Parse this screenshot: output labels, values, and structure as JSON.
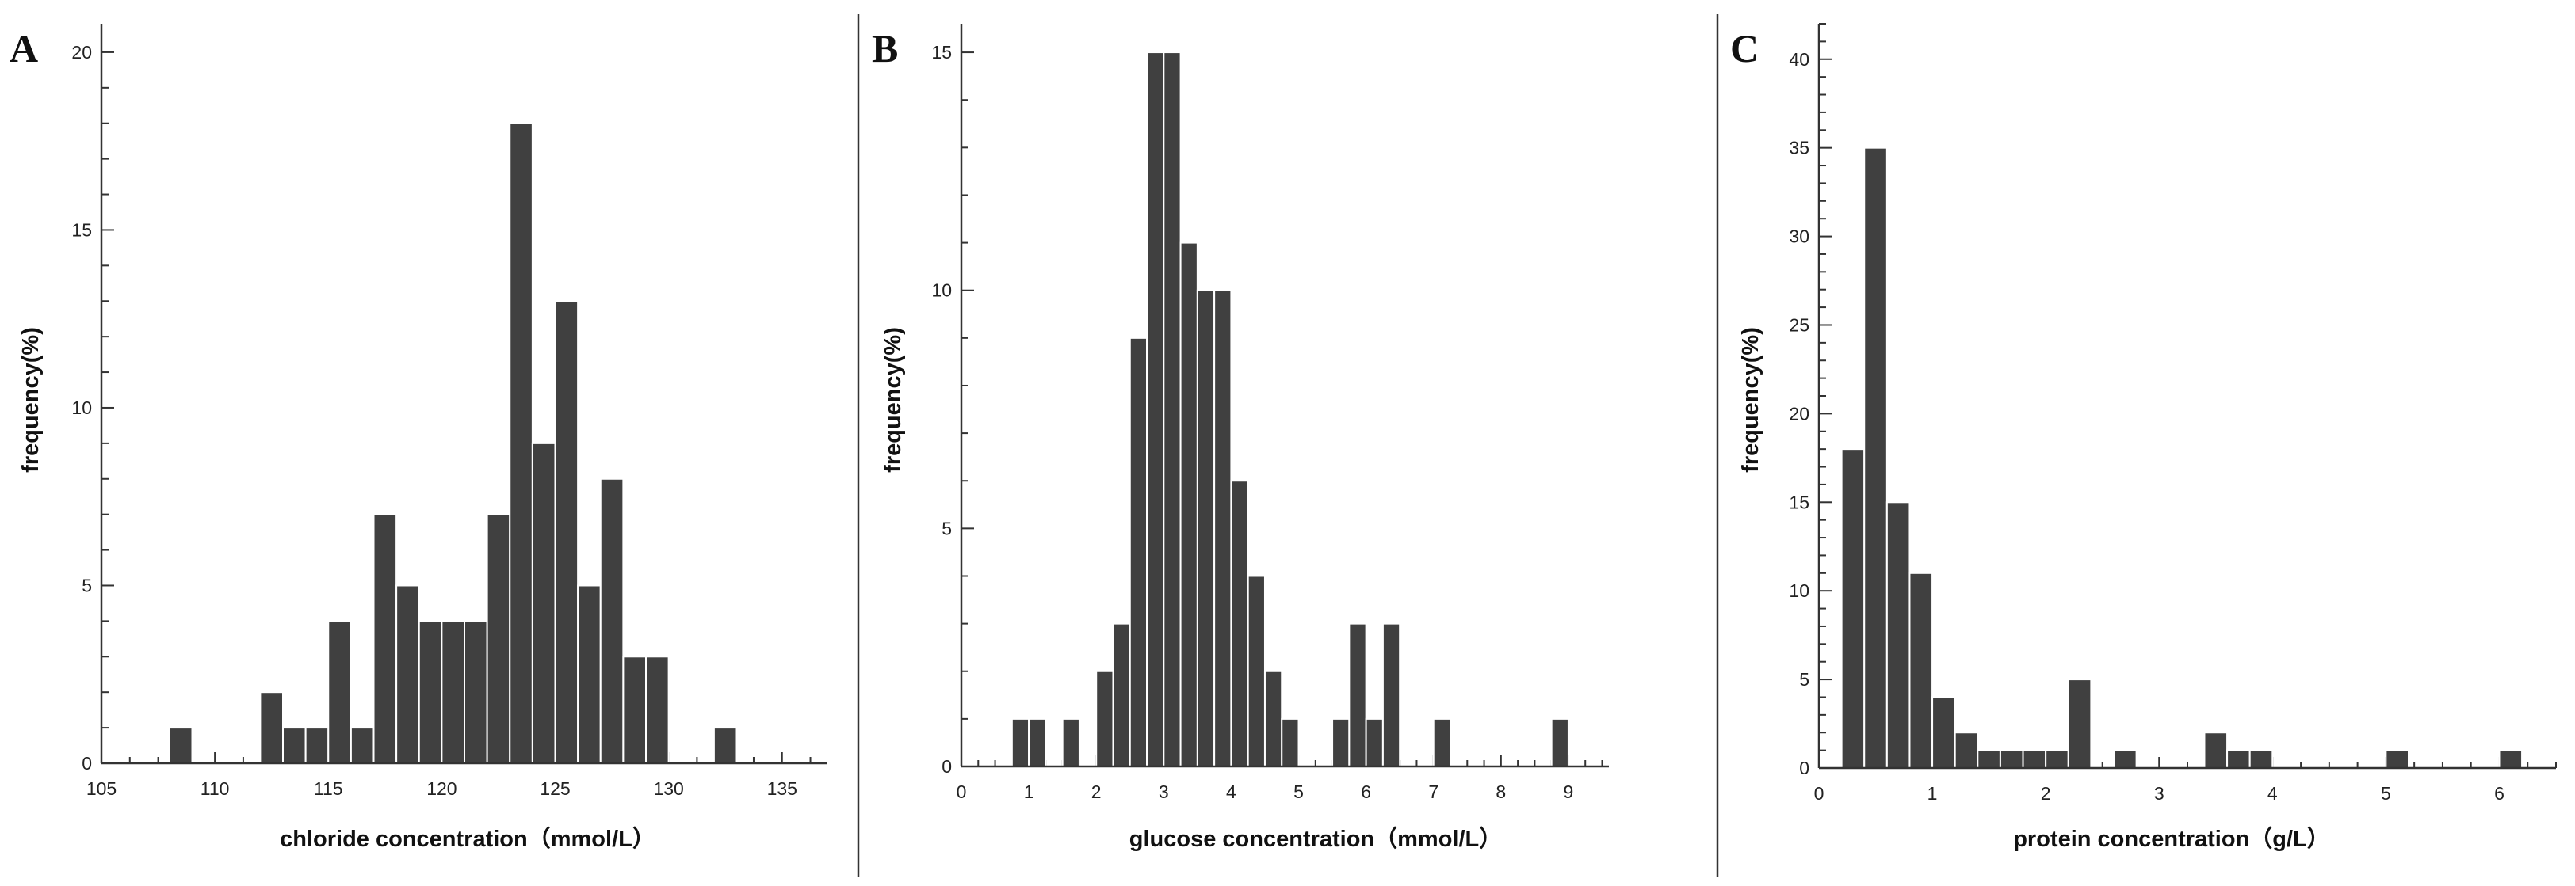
{
  "chart_data": [
    {
      "type": "bar",
      "panel": "A",
      "xlabel": "chloride concentration（mmol/L）",
      "ylabel": "frequency(%)",
      "xlim": [
        105,
        137
      ],
      "ylim": [
        0,
        20.8
      ],
      "xticks": [
        105,
        110,
        115,
        120,
        125,
        130,
        135
      ],
      "yticks": [
        0,
        5,
        10,
        15,
        20
      ],
      "bin_width": 1,
      "bins": [
        {
          "x": 108.5,
          "y": 1
        },
        {
          "x": 112.5,
          "y": 2
        },
        {
          "x": 113.5,
          "y": 1
        },
        {
          "x": 114.5,
          "y": 1
        },
        {
          "x": 115.5,
          "y": 4
        },
        {
          "x": 116.5,
          "y": 1
        },
        {
          "x": 117.5,
          "y": 7
        },
        {
          "x": 118.5,
          "y": 5
        },
        {
          "x": 119.5,
          "y": 4
        },
        {
          "x": 120.5,
          "y": 4
        },
        {
          "x": 121.5,
          "y": 4
        },
        {
          "x": 122.5,
          "y": 7
        },
        {
          "x": 123.5,
          "y": 18
        },
        {
          "x": 124.5,
          "y": 9
        },
        {
          "x": 125.5,
          "y": 13
        },
        {
          "x": 126.5,
          "y": 5
        },
        {
          "x": 127.5,
          "y": 8
        },
        {
          "x": 128.5,
          "y": 3
        },
        {
          "x": 129.5,
          "y": 3
        },
        {
          "x": 132.5,
          "y": 1
        }
      ]
    },
    {
      "type": "bar",
      "panel": "B",
      "xlabel": "glucose concentration（mmol/L）",
      "ylabel": "frequency(%)",
      "xlim": [
        0,
        9.6
      ],
      "ylim": [
        0,
        15.6
      ],
      "xticks": [
        0,
        1,
        2,
        3,
        4,
        5,
        6,
        7,
        8,
        9
      ],
      "yticks": [
        0,
        5,
        10,
        15
      ],
      "bin_width": 0.25,
      "bins": [
        {
          "x": 0.875,
          "y": 1
        },
        {
          "x": 1.125,
          "y": 1
        },
        {
          "x": 1.625,
          "y": 1
        },
        {
          "x": 2.125,
          "y": 2
        },
        {
          "x": 2.375,
          "y": 3
        },
        {
          "x": 2.625,
          "y": 9
        },
        {
          "x": 2.875,
          "y": 15
        },
        {
          "x": 3.125,
          "y": 15
        },
        {
          "x": 3.375,
          "y": 11
        },
        {
          "x": 3.625,
          "y": 10
        },
        {
          "x": 3.875,
          "y": 10
        },
        {
          "x": 4.125,
          "y": 6
        },
        {
          "x": 4.375,
          "y": 4
        },
        {
          "x": 4.625,
          "y": 2
        },
        {
          "x": 4.875,
          "y": 1
        },
        {
          "x": 5.625,
          "y": 1
        },
        {
          "x": 5.875,
          "y": 3
        },
        {
          "x": 6.125,
          "y": 1
        },
        {
          "x": 6.375,
          "y": 3
        },
        {
          "x": 7.125,
          "y": 1
        },
        {
          "x": 8.875,
          "y": 1
        }
      ]
    },
    {
      "type": "bar",
      "panel": "C",
      "xlabel": "protein concentration（g/L）",
      "ylabel": "frequency(%)",
      "xlim": [
        0,
        6.5
      ],
      "ylim": [
        0,
        42
      ],
      "xticks": [
        0,
        1,
        2,
        3,
        4,
        5,
        6
      ],
      "yticks": [
        0,
        5,
        10,
        15,
        20,
        25,
        30,
        35,
        40
      ],
      "bin_width": 0.2,
      "bins": [
        {
          "x": 0.3,
          "y": 18
        },
        {
          "x": 0.5,
          "y": 35
        },
        {
          "x": 0.7,
          "y": 15
        },
        {
          "x": 0.9,
          "y": 11
        },
        {
          "x": 1.1,
          "y": 4
        },
        {
          "x": 1.3,
          "y": 2
        },
        {
          "x": 1.5,
          "y": 1
        },
        {
          "x": 1.7,
          "y": 1
        },
        {
          "x": 1.9,
          "y": 1
        },
        {
          "x": 2.1,
          "y": 1
        },
        {
          "x": 2.3,
          "y": 5
        },
        {
          "x": 2.7,
          "y": 1
        },
        {
          "x": 3.5,
          "y": 2
        },
        {
          "x": 3.7,
          "y": 1
        },
        {
          "x": 3.9,
          "y": 1
        },
        {
          "x": 5.1,
          "y": 1
        },
        {
          "x": 6.1,
          "y": 1
        }
      ]
    }
  ]
}
